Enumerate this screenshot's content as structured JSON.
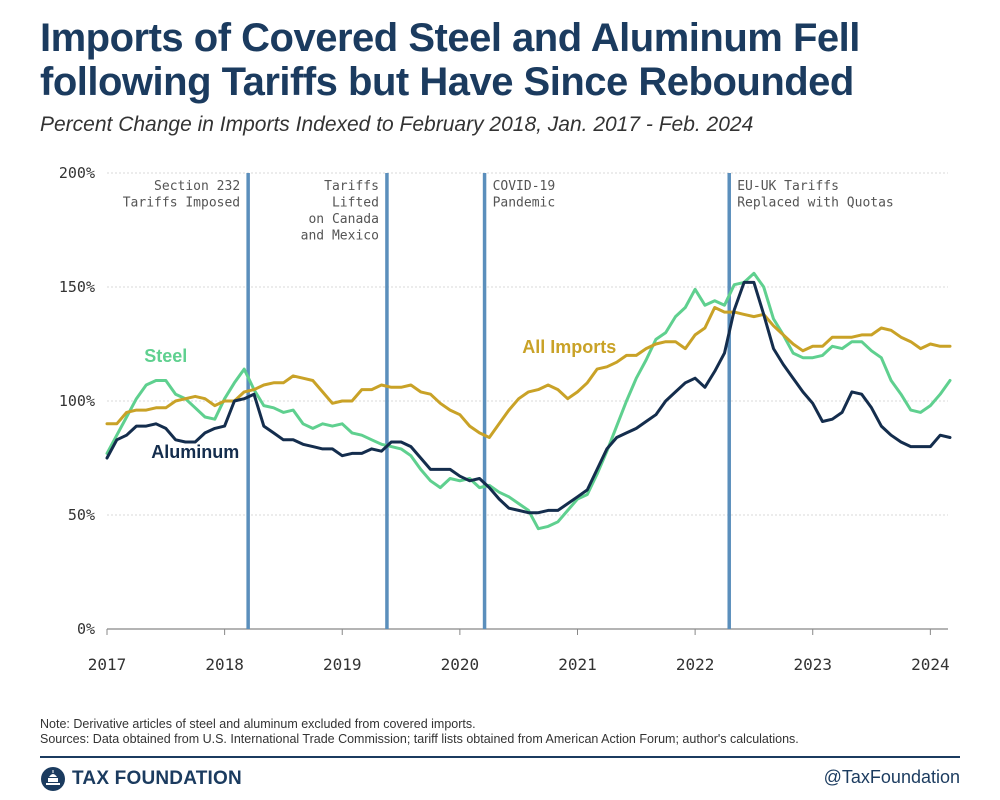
{
  "header": {
    "title": "Imports of Covered Steel and Aluminum Fell following Tariffs but Have Since Rebounded",
    "subtitle": "Percent Change in Imports Indexed to February 2018, Jan. 2017 - Feb. 2024"
  },
  "chart_data": {
    "type": "line",
    "title": "Imports of Covered Steel and Aluminum Fell following Tariffs but Have Since Rebounded",
    "subtitle": "Percent Change in Imports Indexed to February 2018, Jan. 2017 - Feb. 2024",
    "xlabel": "",
    "ylabel": "",
    "x_start": "2017-01",
    "x_range": [
      2017.0,
      2024.15
    ],
    "xticks": [
      {
        "value": 2017,
        "label": "2017"
      },
      {
        "value": 2018,
        "label": "2018"
      },
      {
        "value": 2019,
        "label": "2019"
      },
      {
        "value": 2020,
        "label": "2020"
      },
      {
        "value": 2021,
        "label": "2021"
      },
      {
        "value": 2022,
        "label": "2022"
      },
      {
        "value": 2023,
        "label": "2023"
      },
      {
        "value": 2024,
        "label": "2024"
      }
    ],
    "ylim": [
      0,
      200
    ],
    "yticks": [
      {
        "value": 0,
        "label": "0%"
      },
      {
        "value": 50,
        "label": "50%"
      },
      {
        "value": 100,
        "label": "100%"
      },
      {
        "value": 150,
        "label": "150%"
      },
      {
        "value": 200,
        "label": "200%"
      }
    ],
    "grid": true,
    "series": [
      {
        "name": "Steel",
        "color": "#5fd08f",
        "values": [
          77,
          85,
          93,
          101,
          107,
          109,
          109,
          103,
          101,
          97,
          93,
          92,
          101,
          108,
          114,
          105,
          98,
          97,
          95,
          96,
          90,
          88,
          90,
          89,
          90,
          86,
          85,
          83,
          81,
          80,
          79,
          76,
          70,
          65,
          62,
          66,
          65,
          66,
          62,
          63,
          60,
          58,
          55,
          52,
          44,
          45,
          47,
          52,
          57,
          59,
          68,
          78,
          89,
          100,
          110,
          118,
          127,
          130,
          137,
          141,
          149,
          142,
          144,
          142,
          151,
          152,
          156,
          150,
          136,
          129,
          121,
          119,
          119,
          120,
          124,
          123,
          126,
          126,
          122,
          119,
          109,
          103,
          96,
          95,
          98,
          103,
          109
        ]
      },
      {
        "name": "Aluminum",
        "color": "#142d4d",
        "values": [
          75,
          83,
          85,
          89,
          89,
          90,
          88,
          83,
          82,
          82,
          86,
          88,
          89,
          100,
          101,
          103,
          89,
          86,
          83,
          83,
          81,
          80,
          79,
          79,
          76,
          77,
          77,
          79,
          78,
          82,
          82,
          80,
          75,
          70,
          70,
          70,
          67,
          65,
          66,
          62,
          57,
          53,
          52,
          51,
          51,
          52,
          52,
          55,
          58,
          61,
          70,
          79,
          84,
          86,
          88,
          91,
          94,
          100,
          104,
          108,
          110,
          106,
          113,
          121,
          140,
          152,
          152,
          138,
          123,
          116,
          110,
          104,
          99,
          91,
          92,
          95,
          104,
          103,
          97,
          89,
          85,
          82,
          80,
          80,
          80,
          85,
          84
        ]
      },
      {
        "name": "All Imports",
        "color": "#c9a227",
        "values": [
          90,
          90,
          95,
          96,
          96,
          97,
          97,
          100,
          101,
          102,
          101,
          98,
          100,
          100,
          104,
          105,
          107,
          108,
          108,
          111,
          110,
          109,
          104,
          99,
          100,
          100,
          105,
          105,
          107,
          106,
          106,
          107,
          104,
          103,
          99,
          96,
          94,
          89,
          86,
          84,
          90,
          96,
          101,
          104,
          105,
          107,
          105,
          101,
          104,
          108,
          114,
          115,
          117,
          120,
          120,
          123,
          125,
          126,
          126,
          123,
          129,
          132,
          141,
          139,
          139,
          138,
          137,
          138,
          133,
          129,
          125,
          122,
          124,
          124,
          128,
          128,
          128,
          129,
          129,
          132,
          131,
          128,
          126,
          123,
          125,
          124,
          124
        ]
      }
    ],
    "series_labels": [
      {
        "series": "Steel",
        "text": "Steel",
        "x": 2017.5,
        "y": 117
      },
      {
        "series": "Aluminum",
        "text": "Aluminum",
        "x": 2017.75,
        "y": 75
      },
      {
        "series": "All Imports",
        "text": "All Imports",
        "x": 2020.93,
        "y": 121
      }
    ],
    "events": [
      {
        "date": 2018.2,
        "lines": [
          "Section 232",
          "Tariffs Imposed"
        ],
        "anchor": "end"
      },
      {
        "date": 2019.38,
        "lines": [
          "Tariffs",
          "Lifted",
          "on Canada",
          "and Mexico"
        ],
        "anchor": "end"
      },
      {
        "date": 2020.21,
        "lines": [
          "COVID-19",
          "Pandemic"
        ],
        "anchor": "start"
      },
      {
        "date": 2022.29,
        "lines": [
          "EU-UK Tariffs",
          "Replaced with Quotas"
        ],
        "anchor": "start"
      }
    ],
    "event_line_color": "#5b8fbc"
  },
  "notes": {
    "note": "Note: Derivative articles of steel and aluminum excluded from covered imports.",
    "sources": "Sources: Data obtained from U.S. International Trade Commission; tariff lists obtained from American Action Forum; author's calculations."
  },
  "footer": {
    "brand": "TAX FOUNDATION",
    "handle": "@TaxFoundation"
  },
  "colors": {
    "title": "#1b3b5f",
    "steel": "#5fd08f",
    "aluminum": "#142d4d",
    "all_imports": "#c9a227",
    "event_line": "#5b8fbc"
  }
}
